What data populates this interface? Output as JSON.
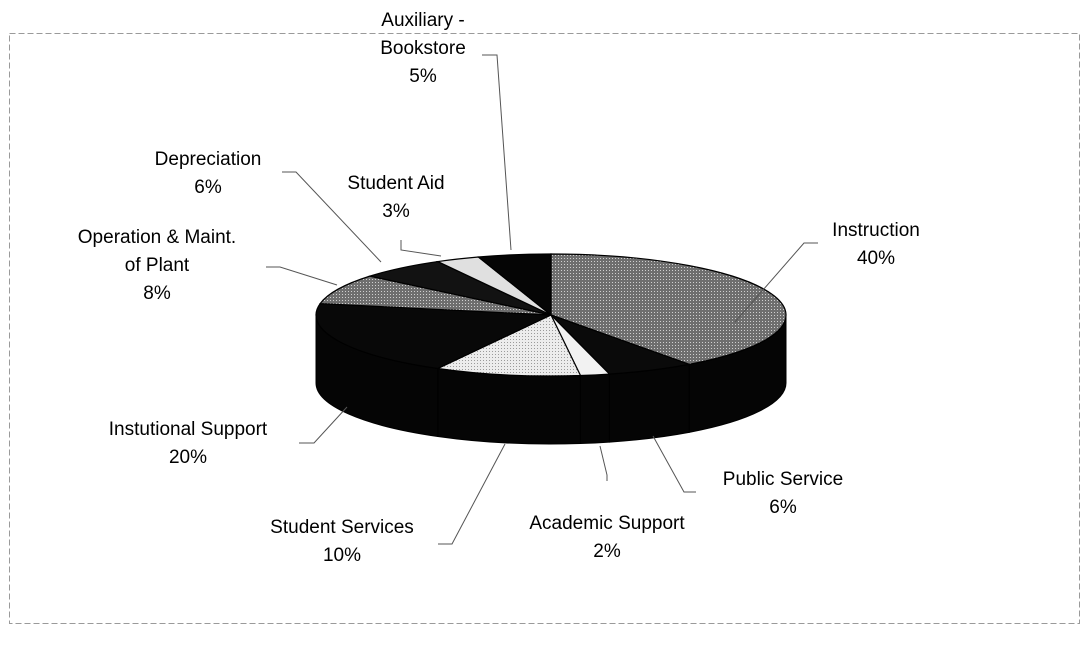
{
  "chart_data": {
    "type": "pie",
    "style": "3d",
    "title": "",
    "slices": [
      {
        "label": "Instruction",
        "value": 40,
        "value_text": "40%",
        "color": "#9a9a9a"
      },
      {
        "label": "Public Service",
        "value": 6,
        "value_text": "6%",
        "color": "#0a0a0a"
      },
      {
        "label": "Academic Support",
        "value": 2,
        "value_text": "2%",
        "color": "#f2f2f2"
      },
      {
        "label": "Student Services",
        "value": 10,
        "value_text": "10%",
        "color": "#dcdcdc"
      },
      {
        "label": "Instutional Support",
        "value": 20,
        "value_text": "20%",
        "color": "#080808"
      },
      {
        "label": "Operation & Maint. of Plant",
        "value": 8,
        "value_text": "8%",
        "color": "#7d7d7d"
      },
      {
        "label": "Depreciation",
        "value": 6,
        "value_text": "6%",
        "color": "#121212"
      },
      {
        "label": "Student Aid",
        "value": 3,
        "value_text": "3%",
        "color": "#e0e0e0"
      },
      {
        "label": "Auxiliary - Bookstore",
        "value": 5,
        "value_text": "5%",
        "color": "#050505"
      }
    ],
    "labels": [
      {
        "lines": [
          "Auxiliary -",
          "Bookstore",
          "5%"
        ]
      },
      {
        "lines": [
          "Depreciation",
          "6%"
        ]
      },
      {
        "lines": [
          "Student Aid",
          "3%"
        ]
      },
      {
        "lines": [
          "Instruction",
          "40%"
        ]
      },
      {
        "lines": [
          "Operation & Maint.",
          "of Plant",
          "8%"
        ]
      },
      {
        "lines": [
          "Instutional Support",
          "20%"
        ]
      },
      {
        "lines": [
          "Public Service",
          "6%"
        ]
      },
      {
        "lines": [
          "Student Services",
          "10%"
        ]
      },
      {
        "lines": [
          "Academic Support",
          "2%"
        ]
      }
    ]
  }
}
